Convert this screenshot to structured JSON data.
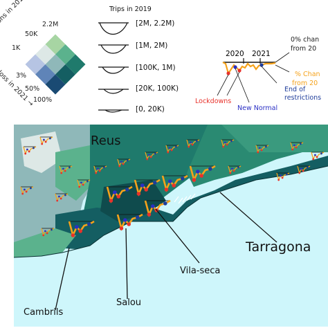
{
  "bivariate_legend": {
    "top_axis_label": "ulations in 2019 →",
    "bottom_axis_label": "loss in 2021 →",
    "top_values": [
      "2.2M",
      "50K",
      "1K"
    ],
    "bottom_values": [
      "3%",
      "50%",
      "100%"
    ],
    "colors": [
      "#a7d5a3",
      "#5bb28d",
      "#1f7a6c",
      "#dde8e6",
      "#8fb8b9",
      "#145e62",
      "#b6c4e3",
      "#5f84b8",
      "#1a4a73"
    ]
  },
  "trips_legend": {
    "title": "Trips in 2019",
    "items": [
      {
        "label": "[2M, 2.2M)"
      },
      {
        "label": "[1M, 2M)"
      },
      {
        "label": "[100K, 1M)"
      },
      {
        "label": "[20K, 100K)"
      },
      {
        "label": "[0, 20K)"
      }
    ]
  },
  "timeline_legend": {
    "year_2020": "2020",
    "year_2021": "2021",
    "zero_change_1": "0% chan",
    "zero_change_2": "from 20",
    "pct_change_1": "% Chan",
    "pct_change_2": "from 20",
    "lockdowns": "Lockdowns",
    "new_normal": "New Normal",
    "end_1": "End of",
    "end_2": "restrictions",
    "colors": {
      "lockdowns": "#e8322b",
      "new_normal": "#2a2fc4",
      "end": "#1f3d9a",
      "change": "#f5a21b"
    }
  },
  "map": {
    "sea_color": "#cef6fb",
    "cities": {
      "reus": "Reus",
      "tarragona": "Tarragona",
      "vila_seca": "Vila-seca",
      "salou": "Salou",
      "cambrils": "Cambrils"
    }
  }
}
